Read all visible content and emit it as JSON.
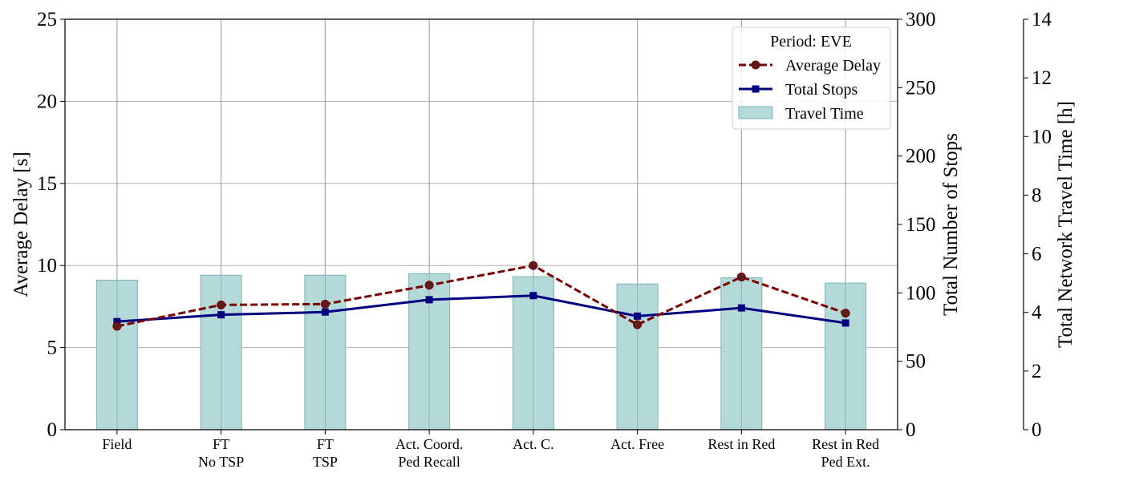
{
  "chart_data": {
    "type": "bar",
    "categories": [
      [
        "Field"
      ],
      [
        "FT",
        "No TSP"
      ],
      [
        "FT",
        "TSP"
      ],
      [
        "Act. Coord.",
        "Ped Recall"
      ],
      [
        "Act. C."
      ],
      [
        "Act. Free"
      ],
      [
        "Rest in Red"
      ],
      [
        "Rest in Red",
        "Ped Ext."
      ]
    ],
    "legend_title": "Period: EVE",
    "legend_position": "top-right",
    "grid": true,
    "axes": {
      "left": {
        "label": "Average Delay [s]",
        "ylim": [
          0,
          25
        ],
        "ticks": [
          0,
          5,
          10,
          15,
          20,
          25
        ]
      },
      "right1": {
        "label": "Total Number of Stops",
        "ylim": [
          0,
          300
        ],
        "ticks": [
          0,
          50,
          100,
          150,
          200,
          250,
          300
        ]
      },
      "right2": {
        "label": "Total Network Travel Time [h]",
        "ylim": [
          0,
          14
        ],
        "ticks": [
          0,
          2,
          4,
          6,
          8,
          10,
          12,
          14
        ]
      }
    },
    "series": [
      {
        "name": "Average Delay",
        "kind": "line",
        "axis": "left",
        "style": "dashed",
        "marker": "circle",
        "color": "#7b0000",
        "marker_color": "#5e1d1d",
        "values": [
          6.3,
          7.6,
          7.65,
          8.8,
          10.0,
          6.4,
          9.3,
          7.1
        ]
      },
      {
        "name": "Total Stops",
        "kind": "line",
        "axis": "right1",
        "style": "solid",
        "marker": "square",
        "color": "#000080",
        "values": [
          79,
          84,
          86,
          95,
          98,
          83,
          89,
          78
        ]
      },
      {
        "name": "Travel Time",
        "kind": "bar",
        "axis": "right2",
        "color": "#b3d9d9",
        "edge_color": "#7fb3b3",
        "values": [
          5.1,
          5.27,
          5.27,
          5.32,
          5.22,
          4.97,
          5.18,
          5.0
        ]
      }
    ]
  }
}
